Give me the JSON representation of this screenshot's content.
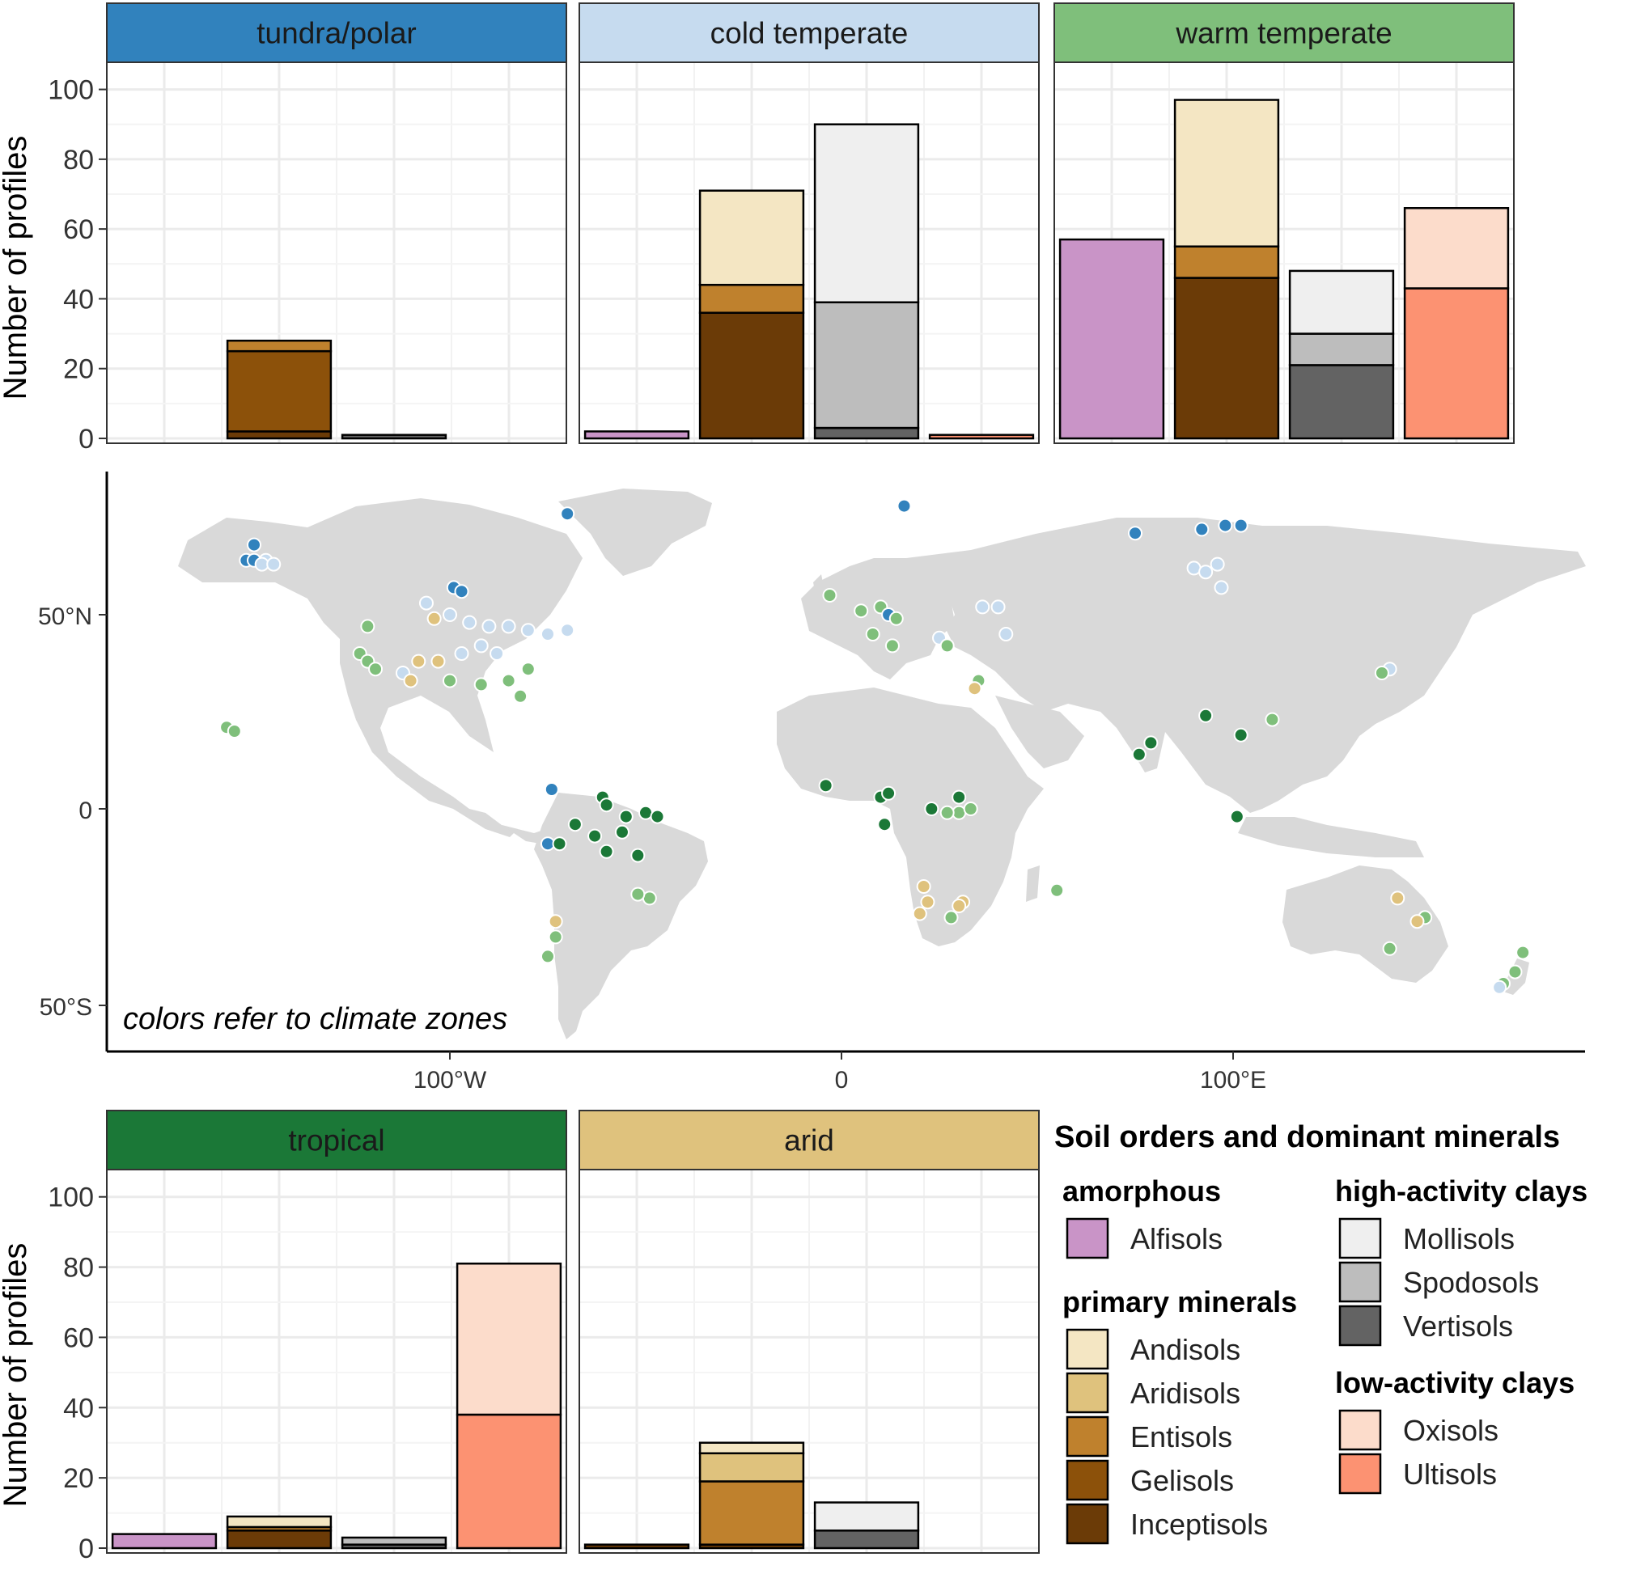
{
  "soil_colors": {
    "Alfisols": "#c994c7",
    "Andisols": "#f4e6c3",
    "Aridisols": "#dfc27d",
    "Entisols": "#bf812d",
    "Gelisols": "#8c510a",
    "Inceptisols": "#6b3b07",
    "Mollisols": "#efefef",
    "Spodosols": "#bdbdbd",
    "Vertisols": "#636363",
    "Oxisols": "#fcdccb",
    "Ultisols": "#fc9272"
  },
  "climate_colors": {
    "tundra/polar": "#3182bd",
    "cold temperate": "#c6dbef",
    "warm temperate": "#7fbf7b",
    "tropical": "#1b7837",
    "arid": "#dfc27d"
  },
  "chart_data": [
    {
      "type": "bar",
      "panel": "tundra/polar",
      "ylabel": "Number of profiles",
      "ylim": [
        0,
        105
      ],
      "yticks": [
        0,
        20,
        40,
        60,
        80,
        100
      ],
      "grid": true,
      "stacked": true,
      "bars": [
        {
          "group": "primary minerals",
          "segments": [
            {
              "order": "Inceptisols",
              "value": 2
            },
            {
              "order": "Gelisols",
              "value": 23
            },
            {
              "order": "Entisols",
              "value": 3
            }
          ]
        },
        {
          "group": "high-activity clays",
          "segments": [
            {
              "order": "Vertisols",
              "value": 1
            }
          ]
        }
      ]
    },
    {
      "type": "bar",
      "panel": "cold temperate",
      "ylim": [
        0,
        105
      ],
      "yticks": [
        0,
        20,
        40,
        60,
        80,
        100
      ],
      "grid": true,
      "stacked": true,
      "bars": [
        {
          "group": "amorphous",
          "segments": [
            {
              "order": "Alfisols",
              "value": 2
            }
          ]
        },
        {
          "group": "primary minerals",
          "segments": [
            {
              "order": "Inceptisols",
              "value": 36
            },
            {
              "order": "Entisols",
              "value": 8
            },
            {
              "order": "Andisols",
              "value": 27
            }
          ]
        },
        {
          "group": "high-activity clays",
          "segments": [
            {
              "order": "Vertisols",
              "value": 3
            },
            {
              "order": "Spodosols",
              "value": 36
            },
            {
              "order": "Mollisols",
              "value": 51
            }
          ]
        },
        {
          "group": "low-activity clays",
          "segments": [
            {
              "order": "Ultisols",
              "value": 1
            }
          ]
        }
      ]
    },
    {
      "type": "bar",
      "panel": "warm temperate",
      "ylim": [
        0,
        105
      ],
      "yticks": [
        0,
        20,
        40,
        60,
        80,
        100
      ],
      "grid": true,
      "stacked": true,
      "bars": [
        {
          "group": "amorphous",
          "segments": [
            {
              "order": "Alfisols",
              "value": 57
            }
          ]
        },
        {
          "group": "primary minerals",
          "segments": [
            {
              "order": "Inceptisols",
              "value": 46
            },
            {
              "order": "Entisols",
              "value": 9
            },
            {
              "order": "Andisols",
              "value": 42
            }
          ]
        },
        {
          "group": "high-activity clays",
          "segments": [
            {
              "order": "Vertisols",
              "value": 21
            },
            {
              "order": "Spodosols",
              "value": 9
            },
            {
              "order": "Mollisols",
              "value": 18
            }
          ]
        },
        {
          "group": "low-activity clays",
          "segments": [
            {
              "order": "Ultisols",
              "value": 43
            },
            {
              "order": "Oxisols",
              "value": 23
            }
          ]
        }
      ]
    },
    {
      "type": "bar",
      "panel": "tropical",
      "ylabel": "Number of profiles",
      "ylim": [
        0,
        105
      ],
      "yticks": [
        0,
        20,
        40,
        60,
        80,
        100
      ],
      "grid": true,
      "stacked": true,
      "bars": [
        {
          "group": "amorphous",
          "segments": [
            {
              "order": "Alfisols",
              "value": 4
            }
          ]
        },
        {
          "group": "primary minerals",
          "segments": [
            {
              "order": "Inceptisols",
              "value": 5
            },
            {
              "order": "Entisols",
              "value": 1
            },
            {
              "order": "Andisols",
              "value": 3
            }
          ]
        },
        {
          "group": "high-activity clays",
          "segments": [
            {
              "order": "Vertisols",
              "value": 1
            },
            {
              "order": "Spodosols",
              "value": 2
            }
          ]
        },
        {
          "group": "low-activity clays",
          "segments": [
            {
              "order": "Ultisols",
              "value": 38
            },
            {
              "order": "Oxisols",
              "value": 43
            }
          ]
        }
      ]
    },
    {
      "type": "bar",
      "panel": "arid",
      "ylim": [
        0,
        105
      ],
      "yticks": [
        0,
        20,
        40,
        60,
        80,
        100
      ],
      "grid": true,
      "stacked": true,
      "bars": [
        {
          "group": "amorphous",
          "segments": [
            {
              "order": "Inceptisols",
              "value": 1
            }
          ]
        },
        {
          "group": "primary minerals",
          "segments": [
            {
              "order": "Inceptisols",
              "value": 1
            },
            {
              "order": "Entisols",
              "value": 18
            },
            {
              "order": "Aridisols",
              "value": 8
            },
            {
              "order": "Andisols",
              "value": 3
            }
          ]
        },
        {
          "group": "high-activity clays",
          "segments": [
            {
              "order": "Vertisols",
              "value": 5
            },
            {
              "order": "Mollisols",
              "value": 8
            }
          ]
        }
      ]
    },
    {
      "type": "scatter",
      "panel": "map",
      "note": "colors refer to climate zones",
      "xticks": [
        "100°W",
        "0",
        "100°E"
      ],
      "yticks": [
        "50°N",
        "0",
        "50°S"
      ],
      "points": [
        {
          "lon": -150,
          "lat": 68,
          "zone": "tundra/polar"
        },
        {
          "lon": -152,
          "lat": 64,
          "zone": "tundra/polar"
        },
        {
          "lon": -150,
          "lat": 64,
          "zone": "tundra/polar"
        },
        {
          "lon": -147,
          "lat": 64,
          "zone": "cold temperate"
        },
        {
          "lon": -148,
          "lat": 63,
          "zone": "cold temperate"
        },
        {
          "lon": -145,
          "lat": 63,
          "zone": "cold temperate"
        },
        {
          "lon": -70,
          "lat": 76,
          "zone": "tundra/polar"
        },
        {
          "lon": 16,
          "lat": 78,
          "zone": "tundra/polar"
        },
        {
          "lon": -99,
          "lat": 57,
          "zone": "tundra/polar"
        },
        {
          "lon": -97,
          "lat": 56,
          "zone": "tundra/polar"
        },
        {
          "lon": 75,
          "lat": 71,
          "zone": "tundra/polar"
        },
        {
          "lon": 92,
          "lat": 72,
          "zone": "tundra/polar"
        },
        {
          "lon": 98,
          "lat": 73,
          "zone": "tundra/polar"
        },
        {
          "lon": 102,
          "lat": 73,
          "zone": "tundra/polar"
        },
        {
          "lon": 90,
          "lat": 62,
          "zone": "cold temperate"
        },
        {
          "lon": 93,
          "lat": 61,
          "zone": "cold temperate"
        },
        {
          "lon": 96,
          "lat": 63,
          "zone": "cold temperate"
        },
        {
          "lon": 97,
          "lat": 57,
          "zone": "cold temperate"
        },
        {
          "lon": 36,
          "lat": 52,
          "zone": "cold temperate"
        },
        {
          "lon": 40,
          "lat": 52,
          "zone": "cold temperate"
        },
        {
          "lon": 42,
          "lat": 45,
          "zone": "cold temperate"
        },
        {
          "lon": 25,
          "lat": 44,
          "zone": "cold temperate"
        },
        {
          "lon": 140,
          "lat": 36,
          "zone": "cold temperate"
        },
        {
          "lon": 138,
          "lat": 35,
          "zone": "warm temperate"
        },
        {
          "lon": -106,
          "lat": 53,
          "zone": "cold temperate"
        },
        {
          "lon": -100,
          "lat": 50,
          "zone": "cold temperate"
        },
        {
          "lon": -95,
          "lat": 48,
          "zone": "cold temperate"
        },
        {
          "lon": -90,
          "lat": 47,
          "zone": "cold temperate"
        },
        {
          "lon": -85,
          "lat": 47,
          "zone": "cold temperate"
        },
        {
          "lon": -80,
          "lat": 46,
          "zone": "cold temperate"
        },
        {
          "lon": -75,
          "lat": 45,
          "zone": "cold temperate"
        },
        {
          "lon": -70,
          "lat": 46,
          "zone": "cold temperate"
        },
        {
          "lon": -92,
          "lat": 42,
          "zone": "cold temperate"
        },
        {
          "lon": -97,
          "lat": 40,
          "zone": "cold temperate"
        },
        {
          "lon": -88,
          "lat": 40,
          "zone": "cold temperate"
        },
        {
          "lon": -112,
          "lat": 35,
          "zone": "cold temperate"
        },
        {
          "lon": -104,
          "lat": 49,
          "zone": "arid"
        },
        {
          "lon": -108,
          "lat": 38,
          "zone": "arid"
        },
        {
          "lon": -110,
          "lat": 33,
          "zone": "arid"
        },
        {
          "lon": -103,
          "lat": 38,
          "zone": "arid"
        },
        {
          "lon": -121,
          "lat": 47,
          "zone": "warm temperate"
        },
        {
          "lon": -123,
          "lat": 40,
          "zone": "warm temperate"
        },
        {
          "lon": -121,
          "lat": 38,
          "zone": "warm temperate"
        },
        {
          "lon": -119,
          "lat": 36,
          "zone": "warm temperate"
        },
        {
          "lon": -100,
          "lat": 33,
          "zone": "warm temperate"
        },
        {
          "lon": -92,
          "lat": 32,
          "zone": "warm temperate"
        },
        {
          "lon": -85,
          "lat": 33,
          "zone": "warm temperate"
        },
        {
          "lon": -82,
          "lat": 29,
          "zone": "warm temperate"
        },
        {
          "lon": -80,
          "lat": 36,
          "zone": "warm temperate"
        },
        {
          "lon": -157,
          "lat": 21,
          "zone": "warm temperate"
        },
        {
          "lon": -155,
          "lat": 20,
          "zone": "warm temperate"
        },
        {
          "lon": -3,
          "lat": 55,
          "zone": "warm temperate"
        },
        {
          "lon": 5,
          "lat": 51,
          "zone": "warm temperate"
        },
        {
          "lon": 10,
          "lat": 52,
          "zone": "warm temperate"
        },
        {
          "lon": 12,
          "lat": 50,
          "zone": "tundra/polar"
        },
        {
          "lon": 14,
          "lat": 49,
          "zone": "warm temperate"
        },
        {
          "lon": 8,
          "lat": 45,
          "zone": "warm temperate"
        },
        {
          "lon": 13,
          "lat": 42,
          "zone": "warm temperate"
        },
        {
          "lon": 27,
          "lat": 42,
          "zone": "warm temperate"
        },
        {
          "lon": 35,
          "lat": 33,
          "zone": "warm temperate"
        },
        {
          "lon": 34,
          "lat": 31,
          "zone": "arid"
        },
        {
          "lon": 110,
          "lat": 23,
          "zone": "warm temperate"
        },
        {
          "lon": 149,
          "lat": -28,
          "zone": "warm temperate"
        },
        {
          "lon": 140,
          "lat": -36,
          "zone": "warm temperate"
        },
        {
          "lon": 147,
          "lat": -29,
          "zone": "arid"
        },
        {
          "lon": 142,
          "lat": -23,
          "zone": "arid"
        },
        {
          "lon": 174,
          "lat": -37,
          "zone": "warm temperate"
        },
        {
          "lon": 172,
          "lat": -42,
          "zone": "warm temperate"
        },
        {
          "lon": 169,
          "lat": -45,
          "zone": "warm temperate"
        },
        {
          "lon": 168,
          "lat": -46,
          "zone": "cold temperate"
        },
        {
          "lon": -73,
          "lat": -29,
          "zone": "arid"
        },
        {
          "lon": -73,
          "lat": -33,
          "zone": "warm temperate"
        },
        {
          "lon": -75,
          "lat": -38,
          "zone": "warm temperate"
        },
        {
          "lon": -49,
          "lat": -23,
          "zone": "warm temperate"
        },
        {
          "lon": -52,
          "lat": -22,
          "zone": "warm temperate"
        },
        {
          "lon": 55,
          "lat": -21,
          "zone": "warm temperate"
        },
        {
          "lon": -74,
          "lat": 5,
          "zone": "tundra/polar"
        },
        {
          "lon": -75,
          "lat": -9,
          "zone": "tundra"
        },
        {
          "lon": -72,
          "lat": -9,
          "zone": "tropical"
        },
        {
          "lon": -61,
          "lat": 3,
          "zone": "tropical"
        },
        {
          "lon": -60,
          "lat": 1,
          "zone": "tropical"
        },
        {
          "lon": -68,
          "lat": -4,
          "zone": "tropical"
        },
        {
          "lon": -63,
          "lat": -7,
          "zone": "tropical"
        },
        {
          "lon": -60,
          "lat": -11,
          "zone": "tropical"
        },
        {
          "lon": -55,
          "lat": -2,
          "zone": "tropical"
        },
        {
          "lon": -50,
          "lat": -1,
          "zone": "tropical"
        },
        {
          "lon": -47,
          "lat": -2,
          "zone": "tropical"
        },
        {
          "lon": -52,
          "lat": -12,
          "zone": "tropical"
        },
        {
          "lon": -56,
          "lat": -6,
          "zone": "tropical"
        },
        {
          "lon": -4,
          "lat": 6,
          "zone": "tropical"
        },
        {
          "lon": 10,
          "lat": 3,
          "zone": "tropical"
        },
        {
          "lon": 12,
          "lat": 4,
          "zone": "tropical"
        },
        {
          "lon": 11,
          "lat": -4,
          "zone": "tropical"
        },
        {
          "lon": 23,
          "lat": 0,
          "zone": "tropical"
        },
        {
          "lon": 30,
          "lat": 3,
          "zone": "tropical"
        },
        {
          "lon": 76,
          "lat": 14,
          "zone": "tropical"
        },
        {
          "lon": 79,
          "lat": 17,
          "zone": "tropical"
        },
        {
          "lon": 93,
          "lat": 24,
          "zone": "tropical"
        },
        {
          "lon": 102,
          "lat": 19,
          "zone": "tropical"
        },
        {
          "lon": 101,
          "lat": -2,
          "zone": "tropical"
        },
        {
          "lon": 30,
          "lat": -1,
          "zone": "warm temperate"
        },
        {
          "lon": 33,
          "lat": 0,
          "zone": "warm temperate"
        },
        {
          "lon": 27,
          "lat": -1,
          "zone": "warm temperate"
        },
        {
          "lon": 21,
          "lat": -20,
          "zone": "arid"
        },
        {
          "lon": 22,
          "lat": -24,
          "zone": "arid"
        },
        {
          "lon": 20,
          "lat": -27,
          "zone": "arid"
        },
        {
          "lon": 31,
          "lat": -24,
          "zone": "arid"
        },
        {
          "lon": 30,
          "lat": -25,
          "zone": "arid"
        },
        {
          "lon": 28,
          "lat": -28,
          "zone": "warm temperate"
        }
      ]
    }
  ],
  "map_axes": {
    "x_ticks": [
      "100°W",
      "0",
      "100°E"
    ],
    "y_ticks": [
      "50°N",
      "0",
      "50°S"
    ]
  },
  "legend": {
    "title": "Soil orders and dominant minerals",
    "groups": [
      {
        "title": "amorphous",
        "items": [
          "Alfisols"
        ]
      },
      {
        "title": "primary minerals",
        "items": [
          "Andisols",
          "Aridisols",
          "Entisols",
          "Gelisols",
          "Inceptisols"
        ]
      },
      {
        "title": "high-activity clays",
        "items": [
          "Mollisols",
          "Spodosols",
          "Vertisols"
        ]
      },
      {
        "title": "low-activity clays",
        "items": [
          "Oxisols",
          "Ultisols"
        ]
      }
    ]
  }
}
